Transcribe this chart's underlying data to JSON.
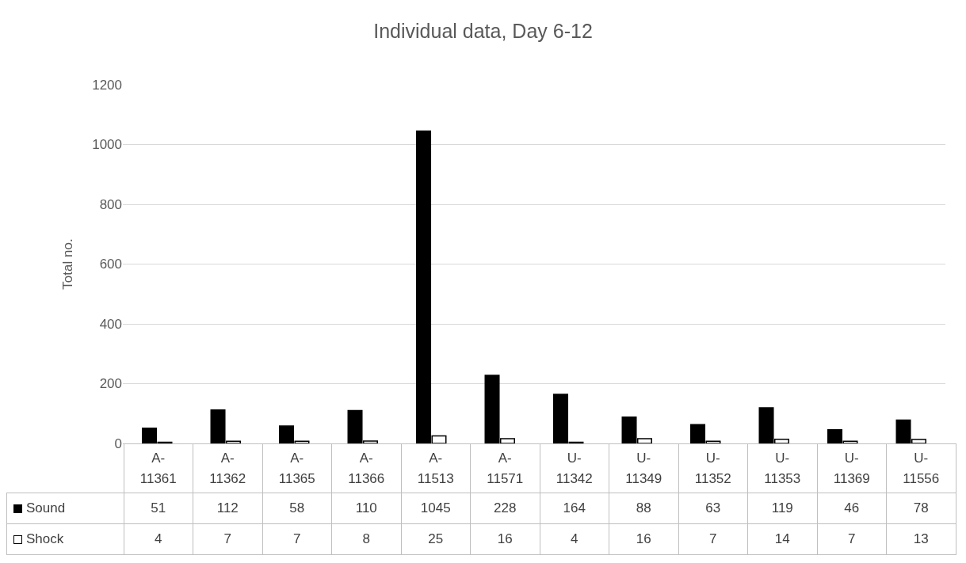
{
  "chart_data": {
    "type": "bar",
    "title": "Individual data, Day 6-12",
    "ylabel": "Total no.",
    "categories": [
      "A-11361",
      "A-11362",
      "A-11365",
      "A-11366",
      "A-11513",
      "A-11571",
      "U-11342",
      "U-11349",
      "U-11352",
      "U-11353",
      "U-11369",
      "U-11556"
    ],
    "series": [
      {
        "name": "Sound",
        "color": "#000000",
        "values": [
          51,
          112,
          58,
          110,
          1045,
          228,
          164,
          88,
          63,
          119,
          46,
          78
        ]
      },
      {
        "name": "Shock",
        "color": "#ffffff",
        "values": [
          4,
          7,
          7,
          8,
          25,
          16,
          4,
          16,
          7,
          14,
          7,
          13
        ]
      }
    ],
    "ylim": [
      0,
      1200
    ],
    "yticks": [
      0,
      200,
      400,
      600,
      800,
      1000,
      1200
    ],
    "grid": "y",
    "legend": "bottom",
    "data_labels": true,
    "tick_labels": "y"
  }
}
